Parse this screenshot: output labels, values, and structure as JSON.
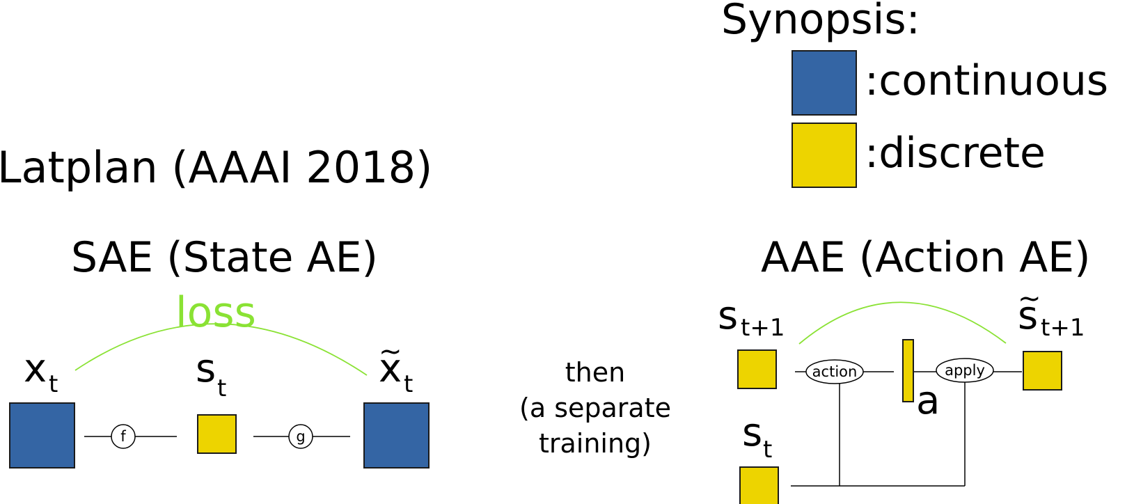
{
  "colors": {
    "continuous": "#3465a4",
    "discrete": "#edd400",
    "loss": "#8ae234",
    "line": "#000000"
  },
  "synopsis": {
    "title": "Synopsis:",
    "continuous_label": ":continuous",
    "discrete_label": ":discrete"
  },
  "latplan_title": "Latplan (AAAI 2018)",
  "sae": {
    "title": "SAE (State AE)",
    "loss_label": "loss",
    "input_var": "x",
    "input_sub": "t",
    "latent_var": "s",
    "latent_sub": "t",
    "output_var": "x",
    "output_tilde": "~",
    "output_sub": "t",
    "encoder_label": "f",
    "decoder_label": "g"
  },
  "between": {
    "line1": "then",
    "line2": "(a separate",
    "line3": "training)"
  },
  "aae": {
    "title": "AAE (Action AE)",
    "next_state_var": "s",
    "next_state_sub": "t+1",
    "current_state_var": "s",
    "current_state_sub": "t",
    "action_node": "action",
    "apply_node": "apply",
    "action_var": "a",
    "recon_var": "s",
    "recon_tilde": "~",
    "recon_sub": "t+1"
  }
}
